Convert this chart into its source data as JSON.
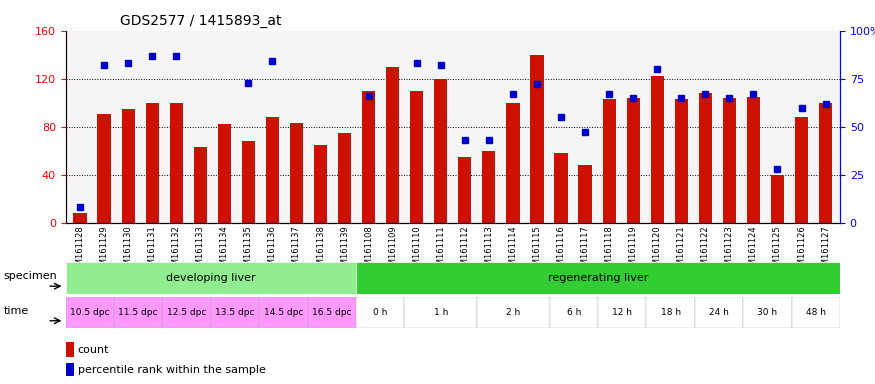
{
  "title": "GDS2577 / 1415893_at",
  "samples": [
    "GSM161128",
    "GSM161129",
    "GSM161130",
    "GSM161131",
    "GSM161132",
    "GSM161133",
    "GSM161134",
    "GSM161135",
    "GSM161136",
    "GSM161137",
    "GSM161138",
    "GSM161139",
    "GSM161108",
    "GSM161109",
    "GSM161110",
    "GSM161111",
    "GSM161112",
    "GSM161113",
    "GSM161114",
    "GSM161115",
    "GSM161116",
    "GSM161117",
    "GSM161118",
    "GSM161119",
    "GSM161120",
    "GSM161121",
    "GSM161122",
    "GSM161123",
    "GSM161124",
    "GSM161125",
    "GSM161126",
    "GSM161127"
  ],
  "counts": [
    8,
    91,
    95,
    100,
    100,
    63,
    82,
    68,
    88,
    83,
    65,
    75,
    110,
    130,
    110,
    120,
    55,
    60,
    100,
    140,
    58,
    48,
    103,
    104,
    122,
    103,
    108,
    104,
    105,
    40,
    88,
    100
  ],
  "percentiles_pct": [
    8,
    82,
    83,
    87,
    87,
    null,
    null,
    73,
    84,
    null,
    null,
    null,
    66,
    null,
    83,
    82,
    43,
    43,
    67,
    72,
    55,
    47,
    67,
    65,
    80,
    65,
    67,
    65,
    67,
    28,
    60,
    62
  ],
  "bar_color": "#CC1100",
  "dot_color": "#0000CC",
  "specimen_groups": [
    {
      "label": "developing liver",
      "start": 0,
      "end": 12,
      "color": "#90EE90"
    },
    {
      "label": "regenerating liver",
      "start": 12,
      "end": 32,
      "color": "#32CD32"
    }
  ],
  "time_groups": [
    {
      "label": "10.5 dpc",
      "start": 0,
      "end": 2,
      "color": "#FF99FF"
    },
    {
      "label": "11.5 dpc",
      "start": 2,
      "end": 4,
      "color": "#FF99FF"
    },
    {
      "label": "12.5 dpc",
      "start": 4,
      "end": 6,
      "color": "#FF99FF"
    },
    {
      "label": "13.5 dpc",
      "start": 6,
      "end": 8,
      "color": "#FF99FF"
    },
    {
      "label": "14.5 dpc",
      "start": 8,
      "end": 10,
      "color": "#FF99FF"
    },
    {
      "label": "16.5 dpc",
      "start": 10,
      "end": 12,
      "color": "#FF99FF"
    },
    {
      "label": "0 h",
      "start": 12,
      "end": 14,
      "color": "#FFFFFF"
    },
    {
      "label": "1 h",
      "start": 14,
      "end": 17,
      "color": "#FFFFFF"
    },
    {
      "label": "2 h",
      "start": 17,
      "end": 20,
      "color": "#FFFFFF"
    },
    {
      "label": "6 h",
      "start": 20,
      "end": 22,
      "color": "#FFFFFF"
    },
    {
      "label": "12 h",
      "start": 22,
      "end": 24,
      "color": "#FFFFFF"
    },
    {
      "label": "18 h",
      "start": 24,
      "end": 26,
      "color": "#FFFFFF"
    },
    {
      "label": "24 h",
      "start": 26,
      "end": 28,
      "color": "#FFFFFF"
    },
    {
      "label": "30 h",
      "start": 28,
      "end": 30,
      "color": "#FFFFFF"
    },
    {
      "label": "48 h",
      "start": 30,
      "end": 32,
      "color": "#FFFFFF"
    }
  ]
}
